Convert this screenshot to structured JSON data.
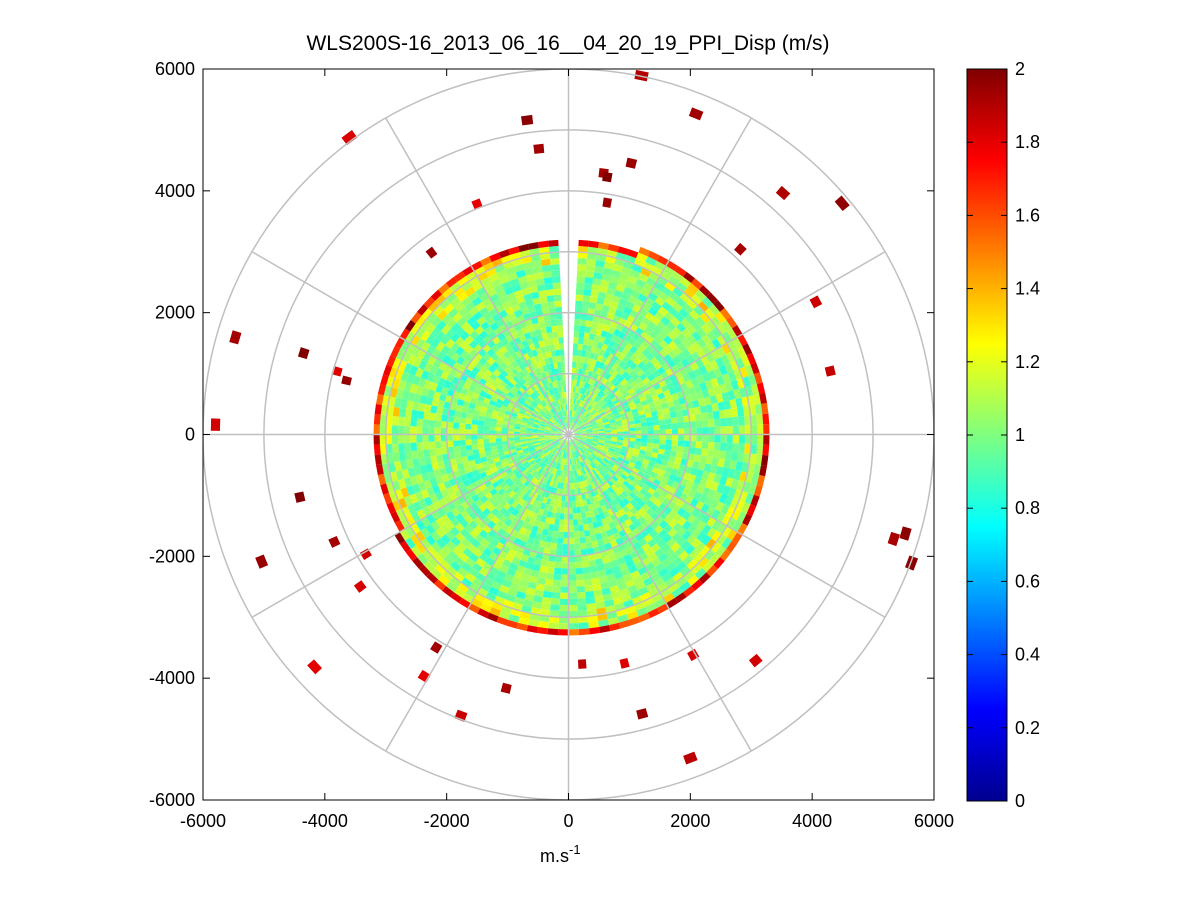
{
  "chart_data": {
    "type": "heatmap",
    "subtype": "polar-ppi",
    "title": "WLS200S-16_2013_06_16__04_20_19_PPI_Disp (m/s)",
    "xlabel_base": "m.s",
    "xlabel_exp": "-1",
    "ylabel": "",
    "xlim": [
      -6000,
      6000
    ],
    "ylim": [
      -6000,
      6000
    ],
    "x_ticks": [
      "-6000",
      "-4000",
      "-2000",
      "0",
      "2000",
      "4000",
      "6000"
    ],
    "y_ticks": [
      "6000",
      "4000",
      "2000",
      "0",
      "-2000",
      "-4000",
      "-6000"
    ],
    "x_tick_values": [
      -6000,
      -4000,
      -2000,
      0,
      2000,
      4000,
      6000
    ],
    "y_tick_values": [
      6000,
      4000,
      2000,
      0,
      -2000,
      -4000,
      -6000
    ],
    "polar_grid": {
      "ring_ranges": [
        1000,
        2000,
        3000,
        4000,
        5000,
        6000
      ],
      "spoke_angles_deg": [
        0,
        30,
        60,
        90,
        120,
        150,
        180,
        210,
        240,
        270,
        300,
        330
      ]
    },
    "data_field": {
      "variable": "dispersion",
      "units": "m/s",
      "max_range_m": 3300,
      "gap_azimuth_deg": [
        -3,
        3
      ],
      "typical_value": 1.0,
      "edge_value": 2.0
    },
    "colorbar": {
      "colormap": "jet",
      "range": [
        0,
        2
      ],
      "ticks": [
        "2",
        "1.8",
        "1.6",
        "1.4",
        "1.2",
        "1",
        "0.8",
        "0.6",
        "0.4",
        "0.2",
        "0"
      ],
      "tick_values": [
        2,
        1.8,
        1.6,
        1.4,
        1.2,
        1,
        0.8,
        0.6,
        0.4,
        0.2,
        0
      ]
    }
  }
}
